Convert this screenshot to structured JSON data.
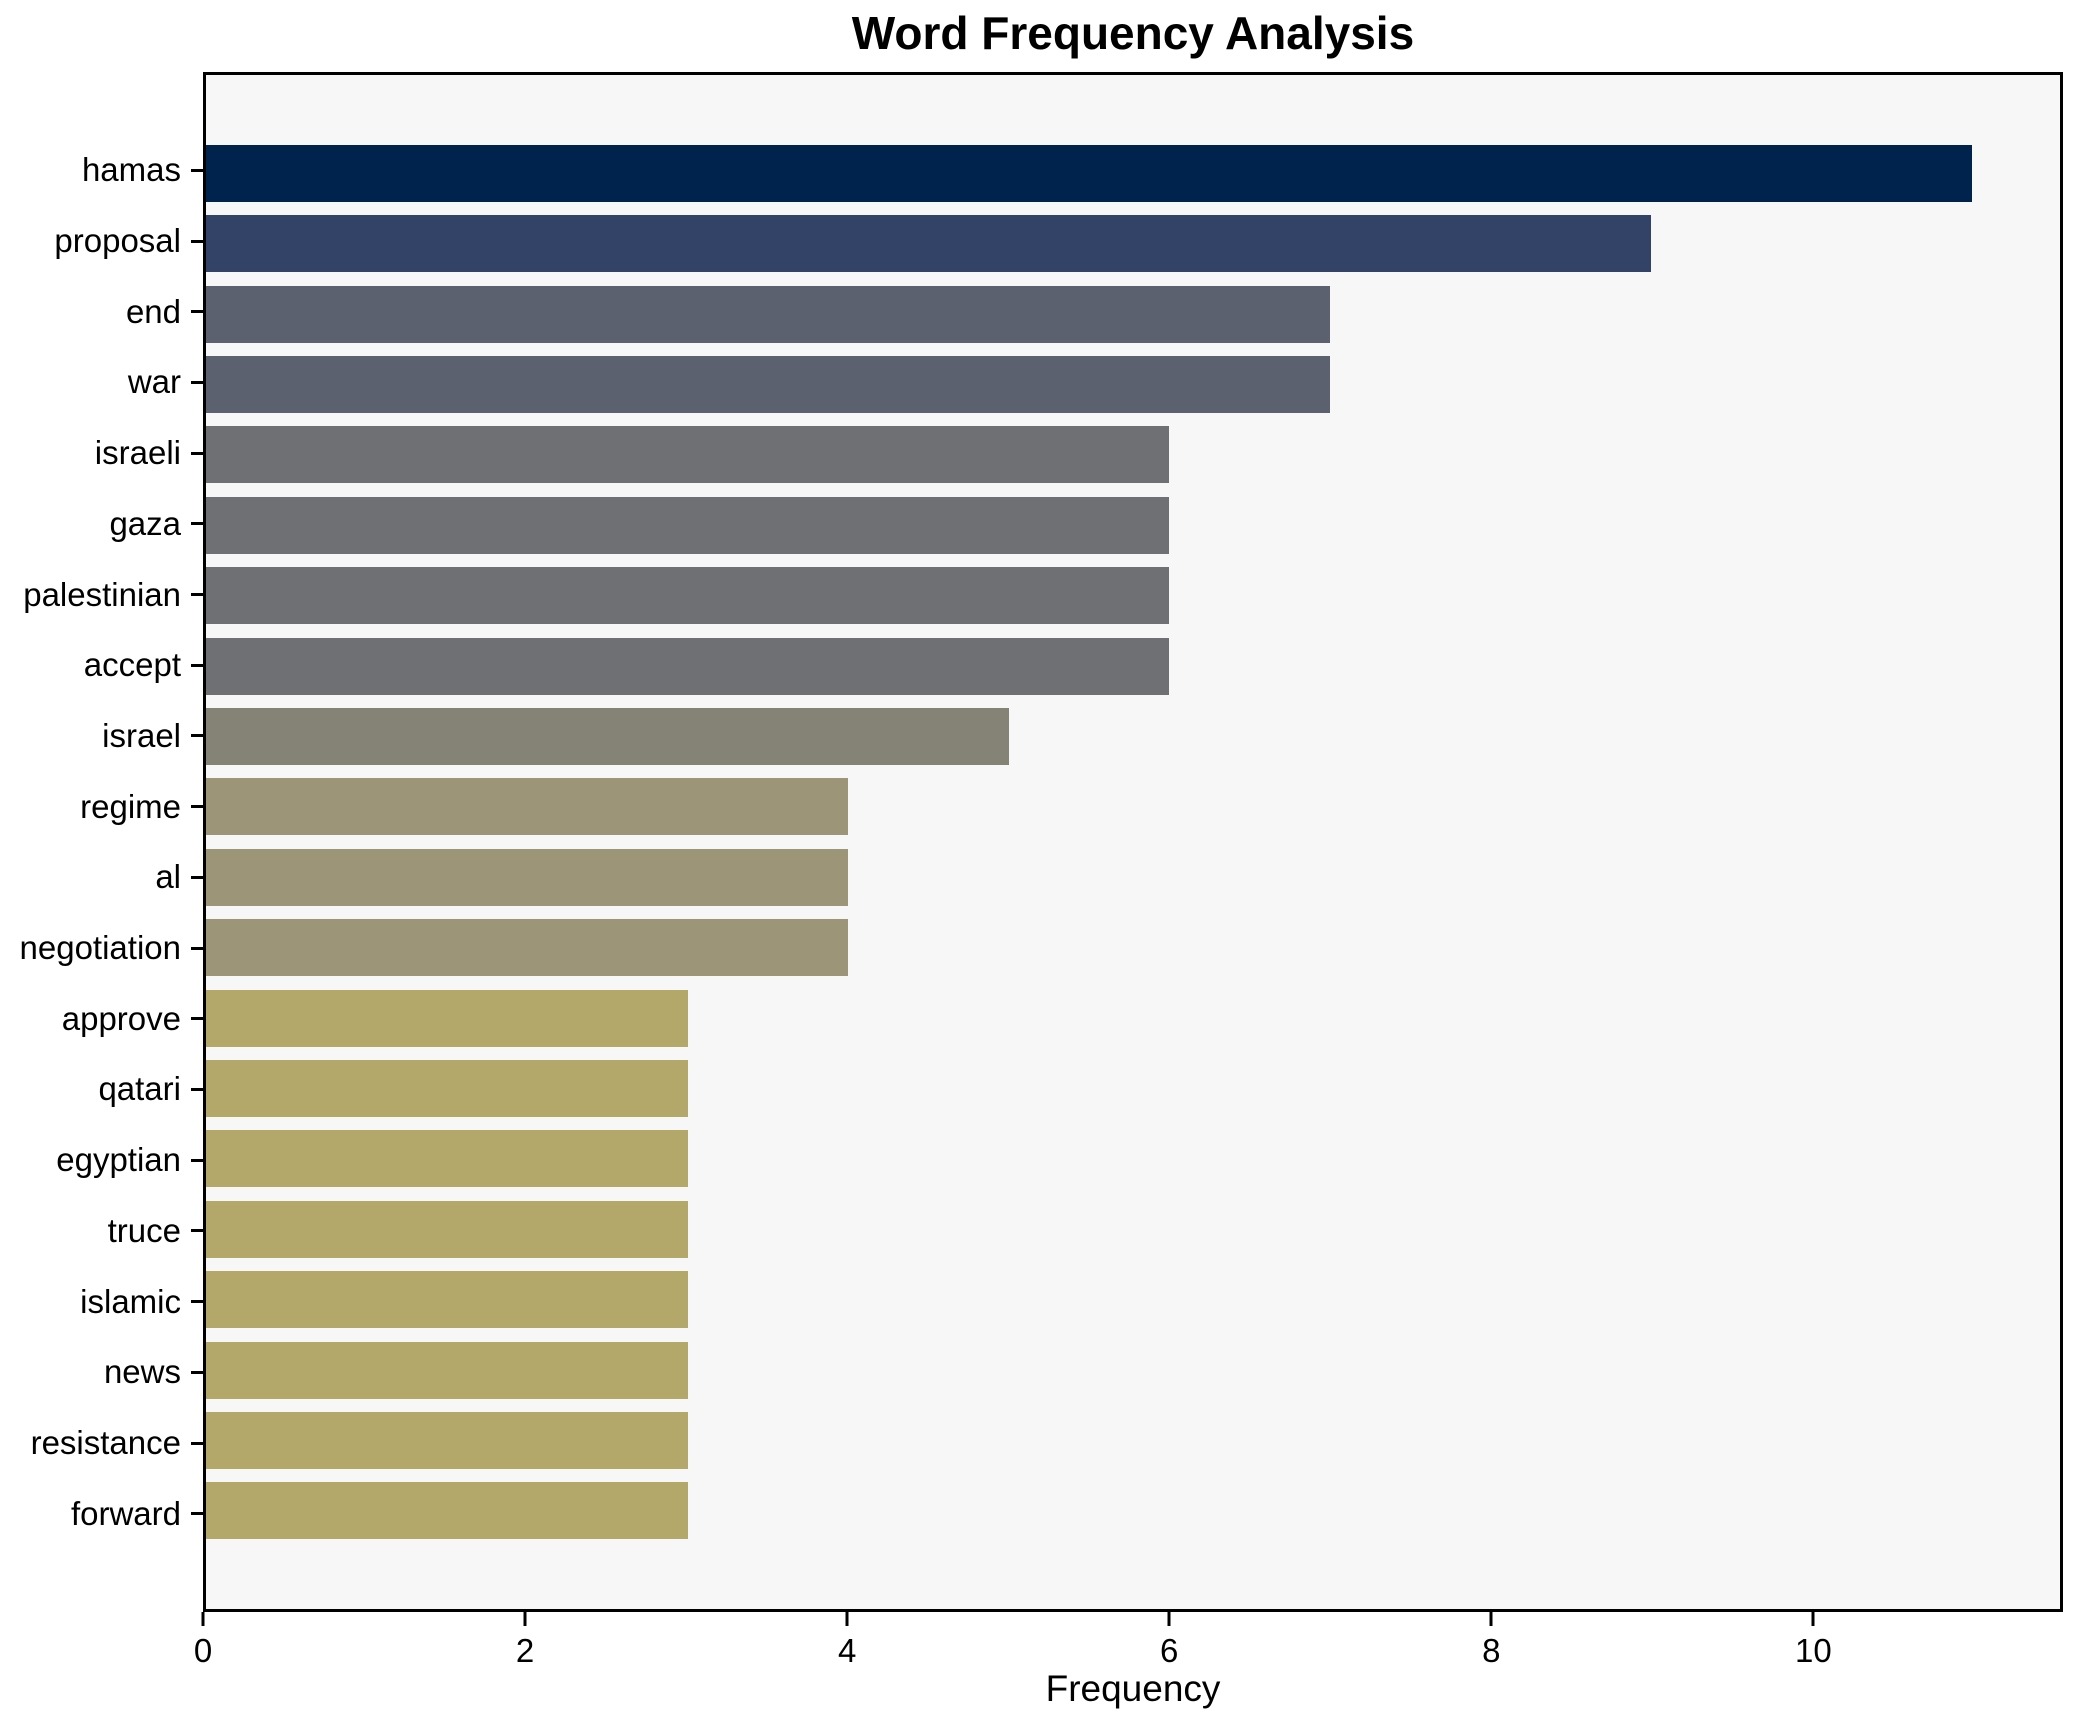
{
  "chart_data": {
    "type": "bar",
    "orientation": "horizontal",
    "title": "Word Frequency Analysis",
    "xlabel": "Frequency",
    "ylabel": "",
    "categories": [
      "hamas",
      "proposal",
      "end",
      "war",
      "israeli",
      "gaza",
      "palestinian",
      "accept",
      "israel",
      "regime",
      "al",
      "negotiation",
      "approve",
      "qatari",
      "egyptian",
      "truce",
      "islamic",
      "news",
      "resistance",
      "forward"
    ],
    "values": [
      11,
      9,
      7,
      7,
      6,
      6,
      6,
      6,
      5,
      4,
      4,
      4,
      3,
      3,
      3,
      3,
      3,
      3,
      3,
      3
    ],
    "bar_colors": [
      "#00234e",
      "#334368",
      "#5c6170",
      "#5c6170",
      "#6e7073",
      "#6e7073",
      "#6e7073",
      "#6e7073",
      "#858376",
      "#9c9577",
      "#9c9577",
      "#9c9577",
      "#b3a869",
      "#b3a869",
      "#b3a869",
      "#b3a869",
      "#b3a869",
      "#b3a869",
      "#b3a869",
      "#b3a869"
    ],
    "xlim": [
      0,
      11.55
    ],
    "xticks": [
      0,
      2,
      4,
      6,
      8,
      10
    ],
    "grid": false,
    "legend_position": "none",
    "colormap": "cividis",
    "plot_bg": "#f7f7f8",
    "figure_bg": "#ffffff",
    "spine_color": "#000000",
    "text_color": "#000000"
  }
}
